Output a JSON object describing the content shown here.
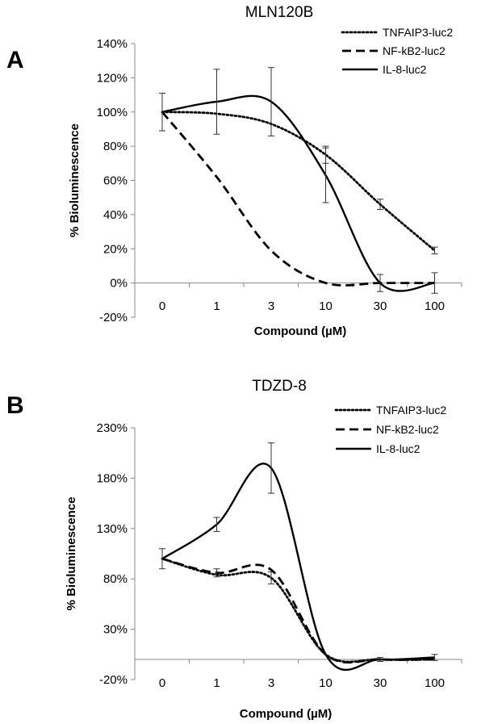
{
  "chart_data": [
    {
      "panel": "A",
      "type": "line",
      "title": "MLN120B",
      "xlabel": "Compound (µM)",
      "ylabel": "% Bioluminescence",
      "categories": [
        "0",
        "1",
        "3",
        "10",
        "30",
        "100"
      ],
      "ylim": [
        -20,
        140
      ],
      "yticks": [
        -20,
        0,
        20,
        40,
        60,
        80,
        100,
        120,
        140
      ],
      "ytick_labels": [
        "-20%",
        "0%",
        "20%",
        "40%",
        "60%",
        "80%",
        "100%",
        "120%",
        "140%"
      ],
      "legend_position": "top-right",
      "grid": false,
      "series": [
        {
          "name": "TNFAIP3-luc2",
          "style": "dotted",
          "values": [
            100,
            99,
            93,
            75,
            46,
            19
          ],
          "errors": [
            0,
            0,
            0,
            5,
            3,
            2
          ]
        },
        {
          "name": "NF-kB2-luc2",
          "style": "dashed",
          "values": [
            100,
            62,
            19,
            0,
            0,
            0
          ],
          "errors": [
            0,
            0,
            0,
            0,
            0,
            0
          ]
        },
        {
          "name": "IL-8-luc2",
          "style": "solid",
          "values": [
            100,
            106,
            106,
            63,
            0,
            0
          ],
          "errors": [
            11,
            19,
            20,
            16,
            5,
            6
          ]
        }
      ]
    },
    {
      "panel": "B",
      "type": "line",
      "title": "TDZD-8",
      "xlabel": "Compound (µM)",
      "ylabel": "% Bioluminescence",
      "categories": [
        "0",
        "1",
        "3",
        "10",
        "30",
        "100"
      ],
      "ylim": [
        -20,
        230
      ],
      "yticks": [
        -20,
        30,
        80,
        130,
        180,
        230
      ],
      "ytick_labels": [
        "-20%",
        "30%",
        "80%",
        "130%",
        "180%",
        "230%"
      ],
      "legend_position": "top-right",
      "grid": false,
      "series": [
        {
          "name": "TNFAIP3-luc2",
          "style": "dotted",
          "values": [
            100,
            84,
            81,
            5,
            0,
            0
          ],
          "errors": [
            0,
            0,
            6,
            0,
            0,
            0
          ]
        },
        {
          "name": "NF-kB2-luc2",
          "style": "dashed",
          "values": [
            100,
            86,
            89,
            5,
            0,
            0
          ],
          "errors": [
            0,
            4,
            0,
            0,
            0,
            0
          ]
        },
        {
          "name": "IL-8-luc2",
          "style": "solid",
          "values": [
            100,
            134,
            190,
            5,
            0,
            2
          ],
          "errors": [
            10,
            7,
            25,
            0,
            2,
            3
          ]
        }
      ]
    }
  ]
}
